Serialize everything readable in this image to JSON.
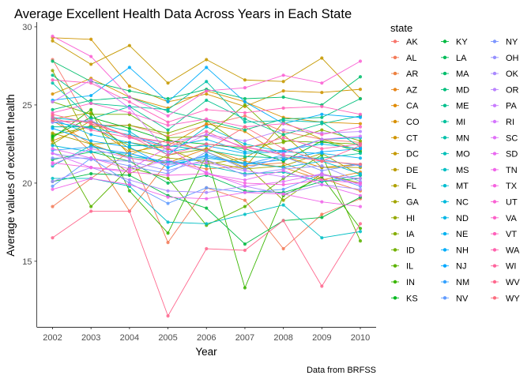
{
  "chart_data": {
    "type": "line",
    "title": "Average Excellent Health Data Across Years in Each State",
    "xlabel": "Year",
    "ylabel": "Average values of excellent health",
    "caption": "Data from BRFSS",
    "legend_title": "state",
    "legend_placement": "right",
    "grid": false,
    "x": [
      2002,
      2003,
      2004,
      2005,
      2006,
      2007,
      2008,
      2009,
      2010
    ],
    "y_ticks": [
      15,
      20,
      25,
      30
    ],
    "ylim": [
      10.8,
      30.3
    ],
    "series": [
      {
        "name": "AK",
        "color": "#F8766D",
        "values": [
          27.9,
          23.7,
          23.7,
          23.0,
          23.7,
          24.3,
          23.3,
          22.8,
          22.6
        ]
      },
      {
        "name": "AL",
        "color": "#F37B59",
        "values": [
          18.5,
          20.3,
          22.0,
          16.2,
          19.7,
          18.9,
          15.8,
          18.0,
          19.0
        ]
      },
      {
        "name": "AR",
        "color": "#ED8141",
        "values": [
          24.3,
          22.0,
          18.2,
          21.4,
          20.9,
          21.1,
          21.3,
          20.3,
          19.5
        ]
      },
      {
        "name": "AZ",
        "color": "#E7861B",
        "values": [
          24.0,
          22.5,
          21.6,
          21.3,
          22.2,
          21.4,
          21.0,
          20.2,
          20.7
        ]
      },
      {
        "name": "CA",
        "color": "#E08B00",
        "values": [
          22.7,
          23.7,
          22.0,
          22.4,
          23.8,
          23.3,
          21.7,
          21.0,
          21.2
        ]
      },
      {
        "name": "CO",
        "color": "#D89000",
        "values": [
          25.7,
          26.7,
          25.5,
          24.8,
          25.9,
          25.2,
          24.2,
          23.9,
          23.8
        ]
      },
      {
        "name": "CT",
        "color": "#CF9400",
        "values": [
          29.3,
          29.2,
          26.2,
          25.2,
          25.7,
          24.9,
          25.9,
          25.8,
          26.0
        ]
      },
      {
        "name": "DC",
        "color": "#C59900",
        "values": [
          29.1,
          27.6,
          28.8,
          26.4,
          27.9,
          26.6,
          26.5,
          28.0,
          25.4
        ]
      },
      {
        "name": "DE",
        "color": "#BB9D00",
        "values": [
          24.1,
          24.5,
          21.8,
          22.8,
          22.0,
          21.0,
          23.9,
          22.8,
          22.1
        ]
      },
      {
        "name": "FL",
        "color": "#AFA100",
        "values": [
          23.2,
          22.5,
          22.6,
          22.2,
          21.2,
          21.6,
          23.1,
          21.0,
          21.0
        ]
      },
      {
        "name": "GA",
        "color": "#A3A500",
        "values": [
          22.5,
          24.0,
          22.2,
          21.6,
          21.4,
          20.9,
          21.1,
          21.9,
          20.5
        ]
      },
      {
        "name": "HI",
        "color": "#95A900",
        "values": [
          27.2,
          22.5,
          20.6,
          21.8,
          22.2,
          21.2,
          18.9,
          20.6,
          20.0
        ]
      },
      {
        "name": "IA",
        "color": "#85AD00",
        "values": [
          23.1,
          23.6,
          23.7,
          23.2,
          24.0,
          22.3,
          22.6,
          23.4,
          22.7
        ]
      },
      {
        "name": "ID",
        "color": "#72B000",
        "values": [
          25.2,
          24.4,
          24.4,
          22.9,
          23.0,
          25.0,
          22.7,
          22.6,
          22.5
        ]
      },
      {
        "name": "IL",
        "color": "#5BB300",
        "values": [
          22.8,
          18.5,
          21.0,
          20.3,
          17.3,
          18.5,
          20.3,
          21.8,
          16.3
        ]
      },
      {
        "name": "IN",
        "color": "#39B600",
        "values": [
          22.9,
          24.7,
          19.5,
          16.8,
          21.8,
          13.3,
          19.2,
          20.4,
          17.1
        ]
      },
      {
        "name": "KS",
        "color": "#00B81F",
        "values": [
          23.0,
          24.2,
          23.5,
          22.7,
          22.5,
          22.2,
          21.4,
          22.7,
          22.0
        ]
      },
      {
        "name": "KY",
        "color": "#00BA42",
        "values": [
          20.1,
          20.6,
          20.5,
          19.2,
          18.4,
          16.1,
          17.6,
          17.8,
          19.1
        ]
      },
      {
        "name": "LA",
        "color": "#00BC59",
        "values": [
          21.5,
          22.0,
          21.4,
          20.0,
          20.5,
          19.5,
          19.4,
          20.1,
          20.3
        ]
      },
      {
        "name": "MA",
        "color": "#00BE6C",
        "values": [
          27.8,
          26.5,
          25.9,
          25.4,
          26.0,
          25.4,
          25.5,
          25.0,
          26.8
        ]
      },
      {
        "name": "MD",
        "color": "#00BF7D",
        "values": [
          24.7,
          25.3,
          25.5,
          24.6,
          24.0,
          23.4,
          24.1,
          24.2,
          25.4
        ]
      },
      {
        "name": "ME",
        "color": "#00C08D",
        "values": [
          26.9,
          25.1,
          24.9,
          23.4,
          25.3,
          24.1,
          23.1,
          23.8,
          24.3
        ]
      },
      {
        "name": "MI",
        "color": "#00C19C",
        "values": [
          23.6,
          23.6,
          22.4,
          22.4,
          22.1,
          21.7,
          21.6,
          21.6,
          21.9
        ]
      },
      {
        "name": "MN",
        "color": "#00C1AA",
        "values": [
          26.4,
          24.1,
          24.9,
          24.7,
          26.5,
          23.9,
          24.0,
          23.9,
          22.3
        ]
      },
      {
        "name": "MO",
        "color": "#00C0B8",
        "values": [
          21.1,
          22.4,
          21.7,
          21.4,
          21.1,
          20.6,
          20.7,
          20.1,
          20.5
        ]
      },
      {
        "name": "MS",
        "color": "#00BFC4",
        "values": [
          20.3,
          20.3,
          19.8,
          17.5,
          17.4,
          18.0,
          18.6,
          16.5,
          16.9
        ]
      },
      {
        "name": "MT",
        "color": "#00BDD0",
        "values": [
          24.2,
          23.9,
          23.3,
          21.8,
          23.6,
          22.5,
          22.0,
          22.8,
          22.9
        ]
      },
      {
        "name": "NC",
        "color": "#00BADC",
        "values": [
          22.4,
          22.0,
          21.9,
          21.2,
          21.6,
          21.3,
          21.0,
          21.4,
          20.6
        ]
      },
      {
        "name": "ND",
        "color": "#00B6E7",
        "values": [
          23.9,
          23.5,
          23.1,
          22.3,
          22.8,
          22.0,
          22.1,
          22.5,
          22.2
        ]
      },
      {
        "name": "NE",
        "color": "#00B2F0",
        "values": [
          24.1,
          23.1,
          22.6,
          22.0,
          22.4,
          21.9,
          22.0,
          21.9,
          21.6
        ]
      },
      {
        "name": "NH",
        "color": "#00ADFA",
        "values": [
          25.3,
          25.6,
          27.4,
          25.2,
          27.4,
          25.2,
          23.8,
          24.4,
          24.2
        ]
      },
      {
        "name": "NJ",
        "color": "#00A8FF",
        "values": [
          23.5,
          22.7,
          22.3,
          21.0,
          21.8,
          21.2,
          21.5,
          22.0,
          22.2
        ]
      },
      {
        "name": "NM",
        "color": "#35A2FF",
        "values": [
          22.1,
          22.3,
          21.9,
          21.3,
          21.7,
          21.2,
          21.8,
          21.5,
          21.1
        ]
      },
      {
        "name": "NV",
        "color": "#619CFF",
        "values": [
          19.8,
          21.6,
          20.0,
          18.7,
          19.7,
          19.4,
          19.6,
          20.6,
          19.8
        ]
      },
      {
        "name": "NY",
        "color": "#7D96FF",
        "values": [
          21.6,
          21.6,
          21.1,
          20.6,
          22.0,
          20.9,
          21.7,
          20.8,
          21.2
        ]
      },
      {
        "name": "OH",
        "color": "#9590FF",
        "values": [
          21.9,
          21.5,
          21.4,
          20.8,
          21.5,
          20.5,
          20.9,
          21.1,
          20.1
        ]
      },
      {
        "name": "OK",
        "color": "#A989FF",
        "values": [
          20.1,
          21.0,
          20.2,
          19.5,
          19.4,
          19.8,
          19.3,
          19.9,
          19.6
        ]
      },
      {
        "name": "OR",
        "color": "#BA83FF",
        "values": [
          23.9,
          24.0,
          22.9,
          22.6,
          23.1,
          22.7,
          23.4,
          23.2,
          23.3
        ]
      },
      {
        "name": "PA",
        "color": "#C97CFF",
        "values": [
          21.2,
          22.2,
          21.6,
          21.2,
          21.3,
          20.8,
          20.4,
          20.5,
          20.3
        ]
      },
      {
        "name": "RI",
        "color": "#D575FE",
        "values": [
          25.2,
          26.6,
          24.8,
          22.0,
          23.1,
          22.3,
          21.9,
          22.8,
          23.0
        ]
      },
      {
        "name": "SC",
        "color": "#E070F8",
        "values": [
          21.9,
          21.0,
          20.8,
          21.5,
          20.7,
          19.8,
          20.1,
          20.6,
          19.9
        ]
      },
      {
        "name": "SD",
        "color": "#E96AF0",
        "values": [
          22.2,
          21.6,
          20.9,
          22.3,
          20.6,
          20.2,
          20.8,
          19.9,
          19.2
        ]
      },
      {
        "name": "TN",
        "color": "#F066E9",
        "values": [
          19.6,
          20.3,
          19.9,
          19.1,
          19.0,
          19.4,
          19.3,
          18.8,
          18.5
        ]
      },
      {
        "name": "TX",
        "color": "#F663DF",
        "values": [
          21.3,
          21.0,
          20.7,
          20.5,
          20.6,
          20.0,
          19.9,
          20.2,
          20.0
        ]
      },
      {
        "name": "UT",
        "color": "#FA62D4",
        "values": [
          29.4,
          28.1,
          25.5,
          24.3,
          25.9,
          26.1,
          26.9,
          26.4,
          27.8
        ]
      },
      {
        "name": "VA",
        "color": "#FD61C8",
        "values": [
          24.5,
          25.1,
          24.5,
          23.7,
          24.1,
          23.6,
          23.8,
          23.1,
          23.6
        ]
      },
      {
        "name": "VT",
        "color": "#FF61BB",
        "values": [
          26.6,
          26.4,
          25.2,
          23.9,
          24.7,
          24.5,
          24.8,
          24.9,
          24.4
        ]
      },
      {
        "name": "WA",
        "color": "#FF62AD",
        "values": [
          24.2,
          23.4,
          22.9,
          22.3,
          23.3,
          22.2,
          22.9,
          22.2,
          22.5
        ]
      },
      {
        "name": "WI",
        "color": "#FF659E",
        "values": [
          24.4,
          23.8,
          23.0,
          21.8,
          22.5,
          22.3,
          21.8,
          21.4,
          22.4
        ]
      },
      {
        "name": "WV",
        "color": "#FF698F",
        "values": [
          16.5,
          18.2,
          18.2,
          11.5,
          15.8,
          15.7,
          17.6,
          13.4,
          17.4
        ]
      },
      {
        "name": "WY",
        "color": "#FC6D7F",
        "values": [
          24.0,
          23.9,
          23.0,
          22.6,
          22.1,
          23.6,
          22.2,
          21.4,
          21.2
        ]
      }
    ]
  }
}
